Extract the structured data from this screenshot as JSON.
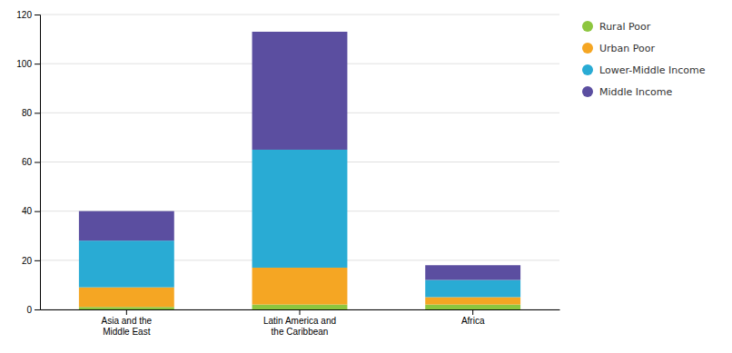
{
  "chart_data": {
    "type": "bar",
    "stacked": true,
    "categories": [
      "Asia and the\nMiddle East",
      "Latin America and\nthe Caribbean",
      "Africa"
    ],
    "series": [
      {
        "name": "Rural Poor",
        "color": "#8DC63F",
        "values": [
          1,
          2,
          2
        ]
      },
      {
        "name": "Urban Poor",
        "color": "#F5A623",
        "values": [
          8,
          15,
          3
        ]
      },
      {
        "name": "Lower-Middle Income",
        "color": "#29ABD4",
        "values": [
          19,
          48,
          7
        ]
      },
      {
        "name": "Middle Income",
        "color": "#5B4EA0",
        "values": [
          12,
          48,
          6
        ]
      }
    ],
    "ylim": [
      0,
      120
    ],
    "yticks": [
      0,
      20,
      40,
      60,
      80,
      100,
      120
    ],
    "grid": true,
    "legend": "right"
  }
}
